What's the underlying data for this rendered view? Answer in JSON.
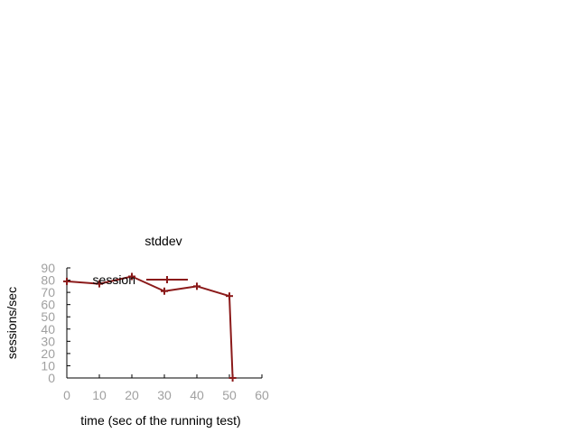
{
  "chart_data": {
    "type": "line",
    "title": "stddev",
    "xlabel": "time (sec of the running test)",
    "ylabel": "sessions/sec",
    "xlim": [
      0,
      60
    ],
    "ylim": [
      0,
      90
    ],
    "xticks": [
      0,
      10,
      20,
      30,
      40,
      50,
      60
    ],
    "yticks": [
      0,
      10,
      20,
      30,
      40,
      50,
      60,
      70,
      80,
      90
    ],
    "grid": false,
    "legend_position": "top-left",
    "series": [
      {
        "name": "session",
        "color": "#8b1a1a",
        "marker": "plus",
        "x": [
          0,
          10,
          20,
          30,
          40,
          50,
          51
        ],
        "y": [
          79,
          77,
          83,
          71,
          75,
          67,
          0
        ]
      }
    ]
  }
}
